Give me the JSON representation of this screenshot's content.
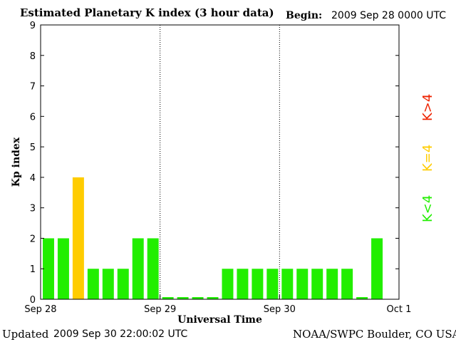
{
  "header": {
    "title": "Estimated Planetary K index (3 hour data)",
    "begin_label": "Begin:",
    "begin_value": "2009 Sep 28 0000 UTC"
  },
  "footer": {
    "updated_label": "Updated",
    "updated_value": "2009 Sep 30 22:00:02 UTC",
    "credit": "NOAA/SWPC Boulder, CO USA"
  },
  "legend": {
    "items": [
      {
        "label": "K<4",
        "color": "#22ee00"
      },
      {
        "label": "K=4",
        "color": "#ffcc00"
      },
      {
        "label": "K>4",
        "color": "#ee2200"
      }
    ]
  },
  "chart_data": {
    "type": "bar",
    "xlabel": "Universal Time",
    "ylabel": "Kp index",
    "ylim": [
      0,
      9
    ],
    "yticks": [
      0,
      1,
      2,
      3,
      4,
      5,
      6,
      7,
      8,
      9
    ],
    "xticks": [
      "Sep 28",
      "Sep 29",
      "Sep 30",
      "Oct 1"
    ],
    "grid": "vertical dotted lines at day boundaries",
    "interval_hours": 3,
    "values": [
      2,
      2,
      4,
      1,
      1,
      1,
      2,
      2,
      0.07,
      0.07,
      0.07,
      0.07,
      1,
      1,
      1,
      1,
      1,
      1,
      1,
      1,
      1,
      0.07,
      2
    ],
    "colors": {
      "below4": "#22ee00",
      "equal4": "#ffcc00",
      "above4": "#ee2200"
    }
  }
}
